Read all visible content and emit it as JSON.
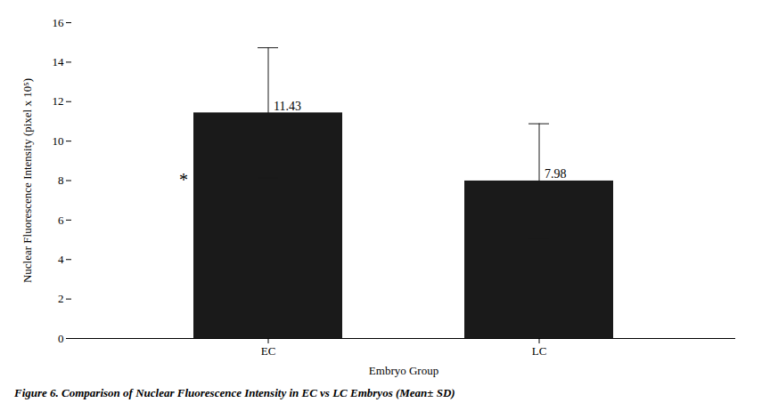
{
  "chart_data": {
    "type": "bar",
    "categories": [
      "EC",
      "LC"
    ],
    "values": [
      11.43,
      7.98
    ],
    "errors": [
      3.3,
      2.9
    ],
    "color": "#1a1a1a",
    "xlabel": "Embryo Group",
    "ylabel": "Nuclear Fluorescence Intensity (pixel x 10⁵)",
    "ylim": [
      0,
      16
    ],
    "yticks": [
      0,
      2,
      4,
      6,
      8,
      10,
      12,
      14,
      16
    ],
    "data_labels": true,
    "grid": false,
    "annotations": [
      {
        "text": "*"
      }
    ],
    "caption": "Figure 6. Comparison of Nuclear Fluorescence Intensity in EC vs LC Embryos (Mean± SD)"
  }
}
